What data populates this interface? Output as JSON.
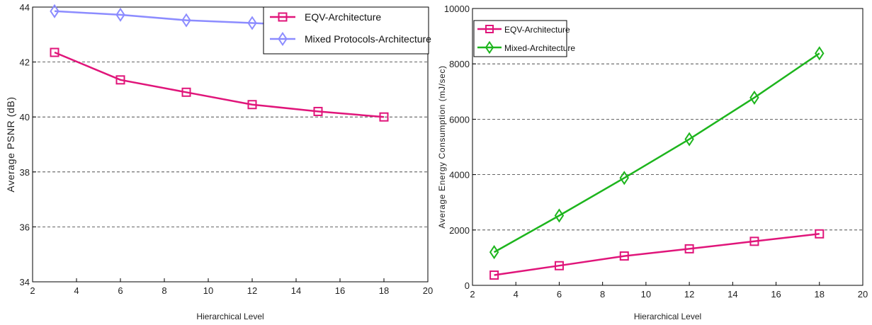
{
  "chart_data": [
    {
      "type": "line",
      "ylabel": "Average PSNR (dB)",
      "xlabel": "Hierarchical Level",
      "xlim": [
        2,
        20
      ],
      "ylim": [
        34,
        44
      ],
      "xticks": [
        2,
        4,
        6,
        8,
        10,
        12,
        14,
        16,
        18,
        20
      ],
      "yticks": [
        34,
        36,
        38,
        40,
        42,
        44
      ],
      "grid": "horizontal dashed",
      "legend_position": "top-right",
      "x": [
        3,
        6,
        9,
        12,
        15,
        18
      ],
      "series": [
        {
          "name": "EQV-Architecture",
          "color": "#e0157a",
          "marker": "square",
          "values": [
            42.35,
            41.35,
            40.9,
            40.45,
            40.2,
            40.0
          ]
        },
        {
          "name": "Mixed Protocols-Architecture",
          "color": "#8c8cff",
          "marker": "diamond",
          "values": [
            43.85,
            43.72,
            43.52,
            43.42,
            43.32,
            43.25
          ]
        }
      ]
    },
    {
      "type": "line",
      "ylabel": "Average Energy Consumption (mJ/sec)",
      "xlabel": "Hierarchical Level",
      "xlim": [
        2,
        20
      ],
      "ylim": [
        0,
        10000
      ],
      "xticks": [
        2,
        4,
        6,
        8,
        10,
        12,
        14,
        16,
        18,
        20
      ],
      "yticks": [
        0,
        2000,
        4000,
        6000,
        8000,
        10000
      ],
      "grid": "horizontal dashed",
      "legend_position": "top-left",
      "x": [
        3,
        6,
        9,
        12,
        15,
        18
      ],
      "series": [
        {
          "name": "EQV-Architecture",
          "color": "#e0157a",
          "marker": "square",
          "values": [
            370,
            710,
            1060,
            1320,
            1590,
            1860
          ]
        },
        {
          "name": "Mixed-Architecture",
          "color": "#1db51d",
          "marker": "diamond",
          "values": [
            1200,
            2520,
            3880,
            5280,
            6780,
            8380
          ]
        }
      ]
    }
  ]
}
